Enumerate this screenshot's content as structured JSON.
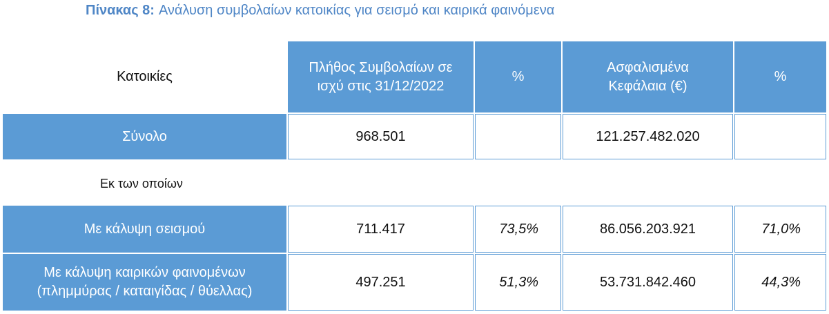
{
  "title": {
    "label": "Πίνακας 8:",
    "text": "Ανάλυση συμβολαίων κατοικίας για σεισμό και καιρικά φαινόμενα"
  },
  "table": {
    "header": [
      "Κατοικίες",
      "Πλήθος Συμβολαίων σε ισχύ στις 31/12/2022",
      "%",
      "Ασφαλισμένα Κεφάλαια (€)",
      "%"
    ],
    "total": {
      "label": "Σύνολο",
      "count": "968.501",
      "capital": "121.257.482.020"
    },
    "subheading": "Εκ των οποίων",
    "rows": [
      {
        "label": "Με κάλυψη σεισμού",
        "count": "711.417",
        "count_pct": "73,5%",
        "capital": "86.056.203.921",
        "capital_pct": "71,0%"
      },
      {
        "label": "Με κάλυψη καιρικών φαινομένων (πλημμύρας / καταιγίδας / θύελλας)",
        "count": "497.251",
        "count_pct": "51,3%",
        "capital": "53.731.842.460",
        "capital_pct": "44,3%"
      }
    ]
  }
}
